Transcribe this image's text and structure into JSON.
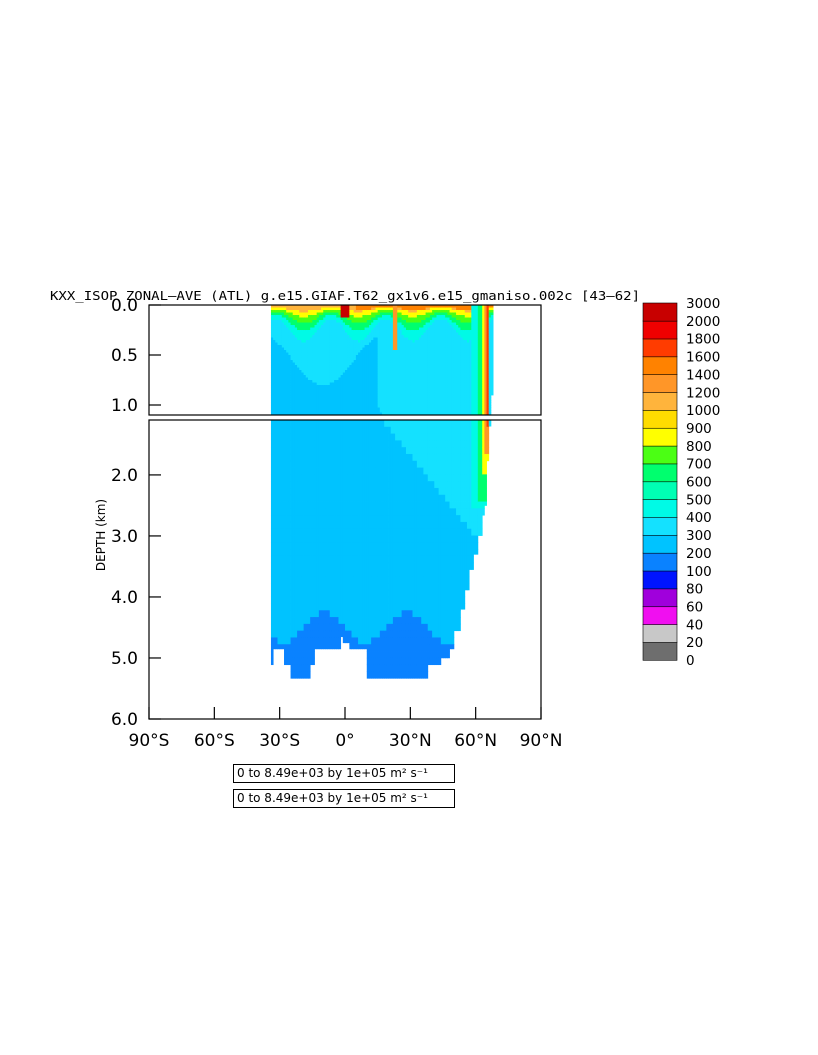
{
  "chart_data": {
    "type": "heatmap",
    "title": "KXX_ISOP ZONAL–AVE (ATL) g.e15.GIAF.T62_gx1v6.e15_gmaniso.002c  [43–62]",
    "ylabel": "DEPTH (km)",
    "xlabel": "",
    "xlim": [
      -90,
      90
    ],
    "ylim_upper_panel": [
      0.0,
      1.1
    ],
    "ylim_lower_panel": [
      1.1,
      6.0
    ],
    "x_ticks": [
      {
        "value": -90,
        "label": "90°S"
      },
      {
        "value": -60,
        "label": "60°S"
      },
      {
        "value": -30,
        "label": "30°S"
      },
      {
        "value": 0,
        "label": "0°"
      },
      {
        "value": 30,
        "label": "30°N"
      },
      {
        "value": 60,
        "label": "60°N"
      },
      {
        "value": 90,
        "label": "90°N"
      }
    ],
    "y_ticks_upper": [
      {
        "value": 0.0,
        "label": "0.0"
      },
      {
        "value": 0.5,
        "label": "0.5"
      },
      {
        "value": 1.0,
        "label": "1.0"
      }
    ],
    "y_ticks_lower": [
      {
        "value": 2.0,
        "label": "2.0"
      },
      {
        "value": 3.0,
        "label": "3.0"
      },
      {
        "value": 4.0,
        "label": "4.0"
      },
      {
        "value": 5.0,
        "label": "5.0"
      },
      {
        "value": 6.0,
        "label": "6.0"
      }
    ],
    "colorbar": {
      "levels": [
        "0",
        "20",
        "40",
        "60",
        "80",
        "100",
        "200",
        "300",
        "400",
        "500",
        "600",
        "700",
        "800",
        "900",
        "1000",
        "1200",
        "1400",
        "1600",
        "1800",
        "2000",
        "3000"
      ],
      "colors": [
        "#6e6e6e",
        "#c8c8c8",
        "#f00ff0",
        "#a000dc",
        "#0014ff",
        "#0a82ff",
        "#00c3ff",
        "#14e1ff",
        "#00fae6",
        "#00ffb4",
        "#00ff6e",
        "#4bff14",
        "#ffff00",
        "#ffdc00",
        "#ffb43c",
        "#ff9628",
        "#ff8200",
        "#ff3c00",
        "#f00000",
        "#c80000"
      ]
    },
    "basin": {
      "south_limit": -34,
      "bottom_depth_km": [
        [
          -34,
          5.15
        ],
        [
          -33,
          4.85
        ],
        [
          -30,
          4.85
        ],
        [
          -28,
          5.15
        ],
        [
          -25,
          5.38
        ],
        [
          -17,
          5.38
        ],
        [
          -16,
          5.15
        ],
        [
          -14,
          4.85
        ],
        [
          -5,
          4.85
        ],
        [
          -2,
          4.65
        ],
        [
          -1,
          4.75
        ],
        [
          2,
          4.85
        ],
        [
          9,
          4.85
        ],
        [
          10,
          5.38
        ],
        [
          36,
          5.38
        ],
        [
          38,
          5.15
        ],
        [
          44,
          5.0
        ],
        [
          48,
          4.85
        ],
        [
          50,
          4.6
        ],
        [
          53,
          4.2
        ],
        [
          55,
          3.9
        ],
        [
          57,
          3.6
        ],
        [
          59,
          3.3
        ],
        [
          61,
          3.0
        ],
        [
          63,
          2.7
        ],
        [
          64,
          2.5
        ],
        [
          65,
          1.8
        ],
        [
          66,
          1.2
        ],
        [
          67,
          0.9
        ],
        [
          68,
          0.1
        ]
      ]
    },
    "contour_range_text": "0 to 8.49e+03 by 1e+05 m² s⁻¹",
    "contour_range_text_2": "0 to 8.49e+03 by 1e+05 m² s⁻¹"
  }
}
